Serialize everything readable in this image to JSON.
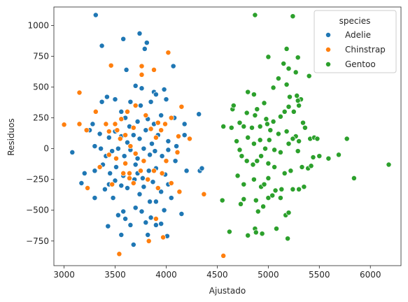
{
  "chart_data": {
    "type": "scatter",
    "xlabel": "Ajustado",
    "ylabel": "Residuos",
    "xlim": [
      2900,
      6300
    ],
    "ylim": [
      -950,
      1150
    ],
    "x_ticks": [
      3000,
      3500,
      4000,
      4500,
      5000,
      5500,
      6000
    ],
    "y_ticks": [
      -750,
      -500,
      -250,
      0,
      250,
      500,
      750,
      1000
    ],
    "legend": {
      "title": "species",
      "position": "top-right"
    },
    "series": [
      {
        "name": "Adelie",
        "color": "#1f77b4",
        "points": [
          [
            3310,
            1085
          ],
          [
            3740,
            935
          ],
          [
            3370,
            835
          ],
          [
            3580,
            890
          ],
          [
            3810,
            860
          ],
          [
            3790,
            810
          ],
          [
            4070,
            670
          ],
          [
            3370,
            380
          ],
          [
            3420,
            420
          ],
          [
            3500,
            400
          ],
          [
            3610,
            640
          ],
          [
            3700,
            510
          ],
          [
            3760,
            490
          ],
          [
            3880,
            460
          ],
          [
            3980,
            480
          ],
          [
            4000,
            400
          ],
          [
            3650,
            380
          ],
          [
            3750,
            350
          ],
          [
            3850,
            380
          ],
          [
            3900,
            440
          ],
          [
            3560,
            300
          ],
          [
            3600,
            250
          ],
          [
            3640,
            180
          ],
          [
            3720,
            220
          ],
          [
            3820,
            240
          ],
          [
            3880,
            200
          ],
          [
            3950,
            270
          ],
          [
            4080,
            250
          ],
          [
            4180,
            200
          ],
          [
            4320,
            280
          ],
          [
            3280,
            200
          ],
          [
            3250,
            150
          ],
          [
            3350,
            120
          ],
          [
            3440,
            90
          ],
          [
            3500,
            140
          ],
          [
            3560,
            100
          ],
          [
            3620,
            50
          ],
          [
            3680,
            110
          ],
          [
            3740,
            80
          ],
          [
            3800,
            150
          ],
          [
            3860,
            40
          ],
          [
            3920,
            110
          ],
          [
            4020,
            60
          ],
          [
            4100,
            20
          ],
          [
            4180,
            110
          ],
          [
            3080,
            -30
          ],
          [
            3300,
            20
          ],
          [
            3360,
            0
          ],
          [
            3410,
            -60
          ],
          [
            3470,
            -20
          ],
          [
            3530,
            0
          ],
          [
            3590,
            -60
          ],
          [
            3650,
            -10
          ],
          [
            3720,
            -80
          ],
          [
            3780,
            0
          ],
          [
            3840,
            -50
          ],
          [
            3890,
            -20
          ],
          [
            3960,
            -60
          ],
          [
            4020,
            -10
          ],
          [
            4090,
            -100
          ],
          [
            3200,
            -200
          ],
          [
            3300,
            -180
          ],
          [
            3380,
            -130
          ],
          [
            3450,
            -200
          ],
          [
            3510,
            -150
          ],
          [
            3580,
            -220
          ],
          [
            3640,
            -200
          ],
          [
            3700,
            -130
          ],
          [
            3770,
            -240
          ],
          [
            3830,
            -180
          ],
          [
            3900,
            -160
          ],
          [
            3990,
            -210
          ],
          [
            4200,
            -180
          ],
          [
            4330,
            -180
          ],
          [
            4350,
            -160
          ],
          [
            3170,
            -280
          ],
          [
            3300,
            -400
          ],
          [
            3400,
            -330
          ],
          [
            3440,
            -290
          ],
          [
            3500,
            -260
          ],
          [
            3560,
            -300
          ],
          [
            3620,
            -320
          ],
          [
            3690,
            -250
          ],
          [
            3740,
            -370
          ],
          [
            3780,
            -310
          ],
          [
            3870,
            -270
          ],
          [
            3900,
            -430
          ],
          [
            3950,
            -350
          ],
          [
            4020,
            -290
          ],
          [
            4050,
            -400
          ],
          [
            3530,
            -540
          ],
          [
            3580,
            -510
          ],
          [
            3600,
            -570
          ],
          [
            3650,
            -620
          ],
          [
            3700,
            -480
          ],
          [
            3760,
            -510
          ],
          [
            3800,
            -600
          ],
          [
            3850,
            -560
          ],
          [
            3900,
            -620
          ],
          [
            3980,
            -500
          ],
          [
            4150,
            -530
          ],
          [
            3430,
            -630
          ],
          [
            3560,
            -700
          ],
          [
            3680,
            -780
          ],
          [
            3820,
            -700
          ],
          [
            4010,
            -710
          ],
          [
            3950,
            -610
          ],
          [
            3480,
            -400
          ],
          [
            3840,
            -430
          ],
          [
            3720,
            -200
          ]
        ]
      },
      {
        "name": "Chinstrap",
        "color": "#ff7f0e",
        "points": [
          [
            3000,
            195
          ],
          [
            3150,
            455
          ],
          [
            3150,
            200
          ],
          [
            3220,
            150
          ],
          [
            3230,
            -320
          ],
          [
            3310,
            300
          ],
          [
            3410,
            200
          ],
          [
            3440,
            140
          ],
          [
            3460,
            675
          ],
          [
            3500,
            200
          ],
          [
            3520,
            150
          ],
          [
            3550,
            80
          ],
          [
            3560,
            240
          ],
          [
            3600,
            110
          ],
          [
            3620,
            300
          ],
          [
            3650,
            20
          ],
          [
            3680,
            170
          ],
          [
            3700,
            350
          ],
          [
            3760,
            670
          ],
          [
            3760,
            600
          ],
          [
            3800,
            270
          ],
          [
            3850,
            160
          ],
          [
            3880,
            640
          ],
          [
            3900,
            90
          ],
          [
            3920,
            210
          ],
          [
            3950,
            150
          ],
          [
            3990,
            200
          ],
          [
            4020,
            780
          ],
          [
            4050,
            250
          ],
          [
            4120,
            100
          ],
          [
            4150,
            340
          ],
          [
            4230,
            80
          ],
          [
            3440,
            -50
          ],
          [
            3510,
            -80
          ],
          [
            3600,
            -120
          ],
          [
            3640,
            -200
          ],
          [
            3680,
            -280
          ],
          [
            3700,
            -40
          ],
          [
            3750,
            -180
          ],
          [
            3780,
            -100
          ],
          [
            3820,
            -250
          ],
          [
            3880,
            -180
          ],
          [
            3920,
            -320
          ],
          [
            3960,
            -200
          ],
          [
            4000,
            -100
          ],
          [
            4050,
            -280
          ],
          [
            4110,
            -30
          ],
          [
            4130,
            -350
          ],
          [
            3540,
            -855
          ],
          [
            3640,
            -240
          ],
          [
            3830,
            -750
          ],
          [
            3900,
            -570
          ],
          [
            3970,
            -720
          ],
          [
            4370,
            -370
          ],
          [
            4560,
            -870
          ],
          [
            3580,
            -200
          ],
          [
            3350,
            -150
          ],
          [
            3470,
            -290
          ]
        ]
      },
      {
        "name": "Gentoo",
        "color": "#2ca02c",
        "points": [
          [
            4870,
            1085
          ],
          [
            5240,
            1075
          ],
          [
            5180,
            810
          ],
          [
            5000,
            745
          ],
          [
            5290,
            740
          ],
          [
            5150,
            690
          ],
          [
            5200,
            650
          ],
          [
            5270,
            620
          ],
          [
            5400,
            590
          ],
          [
            5100,
            570
          ],
          [
            5180,
            520
          ],
          [
            5050,
            495
          ],
          [
            4860,
            440
          ],
          [
            4800,
            460
          ],
          [
            5210,
            420
          ],
          [
            5280,
            430
          ],
          [
            5320,
            400
          ],
          [
            5290,
            390
          ],
          [
            5300,
            350
          ],
          [
            5250,
            300
          ],
          [
            5200,
            340
          ],
          [
            5160,
            300
          ],
          [
            5120,
            260
          ],
          [
            5050,
            220
          ],
          [
            4960,
            370
          ],
          [
            4890,
            320
          ],
          [
            4980,
            240
          ],
          [
            4870,
            270
          ],
          [
            4790,
            290
          ],
          [
            4650,
            320
          ],
          [
            4660,
            350
          ],
          [
            4720,
            210
          ],
          [
            4760,
            180
          ],
          [
            4840,
            170
          ],
          [
            4920,
            180
          ],
          [
            4990,
            200
          ],
          [
            5020,
            150
          ],
          [
            5100,
            120
          ],
          [
            5180,
            140
          ],
          [
            5270,
            100
          ],
          [
            5340,
            210
          ],
          [
            5360,
            170
          ],
          [
            5410,
            80
          ],
          [
            5450,
            90
          ],
          [
            5480,
            80
          ],
          [
            5300,
            60
          ],
          [
            5240,
            80
          ],
          [
            5200,
            40
          ],
          [
            4560,
            180
          ],
          [
            4640,
            170
          ],
          [
            4690,
            60
          ],
          [
            4800,
            90
          ],
          [
            4860,
            40
          ],
          [
            4920,
            70
          ],
          [
            4970,
            0
          ],
          [
            5060,
            -10
          ],
          [
            5120,
            -30
          ],
          [
            5290,
            -20
          ],
          [
            4720,
            -10
          ],
          [
            4740,
            -60
          ],
          [
            4790,
            -100
          ],
          [
            4850,
            -130
          ],
          [
            4930,
            -60
          ],
          [
            5000,
            -120
          ],
          [
            5060,
            -150
          ],
          [
            5160,
            -200
          ],
          [
            5220,
            -180
          ],
          [
            5330,
            -150
          ],
          [
            5390,
            -160
          ],
          [
            5420,
            -140
          ],
          [
            5440,
            -70
          ],
          [
            5500,
            -60
          ],
          [
            5590,
            -80
          ],
          [
            5690,
            -50
          ],
          [
            5770,
            80
          ],
          [
            5840,
            -240
          ],
          [
            6180,
            -130
          ],
          [
            4700,
            -220
          ],
          [
            4760,
            -290
          ],
          [
            4860,
            -250
          ],
          [
            4930,
            -310
          ],
          [
            4960,
            -290
          ],
          [
            5000,
            -240
          ],
          [
            5070,
            -340
          ],
          [
            5130,
            -330
          ],
          [
            5240,
            -330
          ],
          [
            5300,
            -330
          ],
          [
            5350,
            -310
          ],
          [
            4550,
            -420
          ],
          [
            4730,
            -450
          ],
          [
            4760,
            -410
          ],
          [
            4880,
            -420
          ],
          [
            4950,
            -470
          ],
          [
            5000,
            -400
          ],
          [
            5040,
            -380
          ],
          [
            5120,
            -400
          ],
          [
            5170,
            -540
          ],
          [
            5200,
            -520
          ],
          [
            4900,
            -510
          ],
          [
            4620,
            -675
          ],
          [
            4800,
            -705
          ],
          [
            4870,
            -650
          ],
          [
            4880,
            -680
          ],
          [
            4940,
            -690
          ],
          [
            5190,
            -730
          ],
          [
            5080,
            -650
          ],
          [
            4890,
            -100
          ],
          [
            5010,
            70
          ]
        ]
      }
    ]
  }
}
